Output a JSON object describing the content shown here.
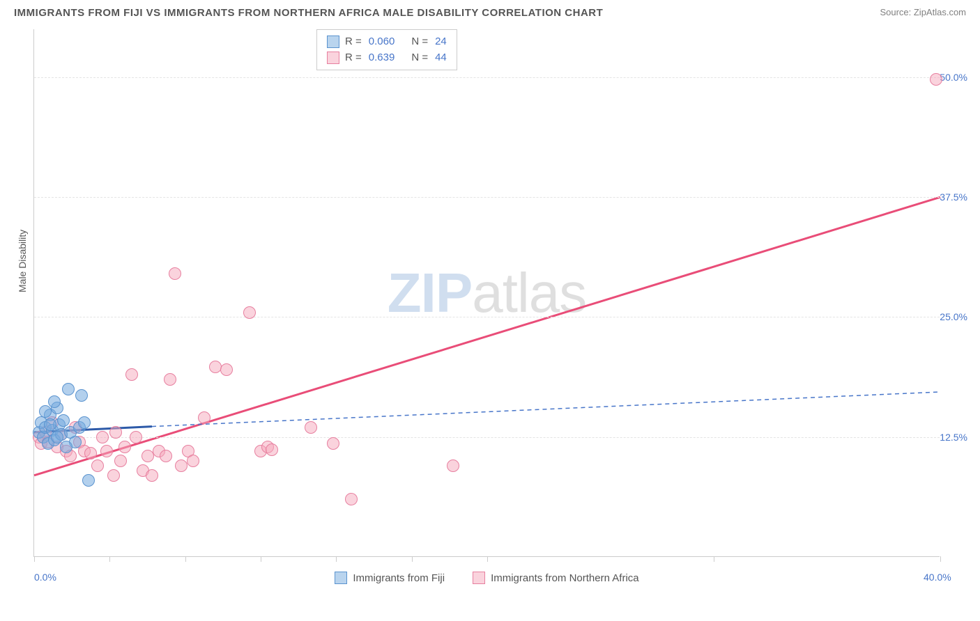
{
  "header": {
    "title": "IMMIGRANTS FROM FIJI VS IMMIGRANTS FROM NORTHERN AFRICA MALE DISABILITY CORRELATION CHART",
    "source": "Source: ZipAtlas.com"
  },
  "chart": {
    "y_title": "Male Disability",
    "watermark_zip": "ZIP",
    "watermark_atlas": "atlas",
    "xlim": [
      0,
      40
    ],
    "ylim": [
      0,
      55
    ],
    "x_ticks_pct": [
      0,
      3.33,
      6.67,
      10,
      13.33,
      16.67,
      20,
      30,
      40
    ],
    "x_labels": [
      {
        "x": 0,
        "text": "0.0%"
      },
      {
        "x": 40,
        "text": "40.0%"
      }
    ],
    "y_gridlines": [
      12.5,
      25.0,
      37.5,
      50.0
    ],
    "y_labels": [
      {
        "y": 12.5,
        "text": "12.5%"
      },
      {
        "y": 25.0,
        "text": "25.0%"
      },
      {
        "y": 37.5,
        "text": "37.5%"
      },
      {
        "y": 50.0,
        "text": "50.0%"
      }
    ],
    "series": {
      "blue": {
        "label": "Immigrants from Fiji",
        "color_fill": "rgba(116,169,222,0.55)",
        "color_stroke": "#5a93cf",
        "R": "0.060",
        "N": "24",
        "trend_solid": {
          "x1": 0,
          "y1": 13.0,
          "x2": 5.2,
          "y2": 13.6
        },
        "trend_dash": {
          "x1": 5.2,
          "y1": 13.6,
          "x2": 40,
          "y2": 17.2
        },
        "points": [
          {
            "x": 0.2,
            "y": 13.0
          },
          {
            "x": 0.3,
            "y": 14.0
          },
          {
            "x": 0.4,
            "y": 12.5
          },
          {
            "x": 0.5,
            "y": 13.5
          },
          {
            "x": 0.6,
            "y": 11.8
          },
          {
            "x": 0.7,
            "y": 14.8
          },
          {
            "x": 0.8,
            "y": 13.2
          },
          {
            "x": 0.9,
            "y": 12.2
          },
          {
            "x": 1.0,
            "y": 15.5
          },
          {
            "x": 1.1,
            "y": 13.8
          },
          {
            "x": 1.2,
            "y": 12.8
          },
          {
            "x": 1.3,
            "y": 14.2
          },
          {
            "x": 1.5,
            "y": 17.5
          },
          {
            "x": 1.6,
            "y": 13.0
          },
          {
            "x": 1.8,
            "y": 12.0
          },
          {
            "x": 2.0,
            "y": 13.5
          },
          {
            "x": 2.2,
            "y": 14.0
          },
          {
            "x": 2.4,
            "y": 8.0
          },
          {
            "x": 2.1,
            "y": 16.8
          },
          {
            "x": 0.5,
            "y": 15.2
          },
          {
            "x": 0.9,
            "y": 16.2
          },
          {
            "x": 1.4,
            "y": 11.5
          },
          {
            "x": 0.7,
            "y": 13.8
          },
          {
            "x": 1.0,
            "y": 12.5
          }
        ]
      },
      "pink": {
        "label": "Immigrants from Northern Africa",
        "color_fill": "rgba(245,168,188,0.5)",
        "color_stroke": "#e77f9f",
        "R": "0.639",
        "N": "44",
        "trend_solid": {
          "x1": 0,
          "y1": 8.5,
          "x2": 40,
          "y2": 37.5
        },
        "points": [
          {
            "x": 0.2,
            "y": 12.5
          },
          {
            "x": 0.3,
            "y": 11.8
          },
          {
            "x": 0.5,
            "y": 13.0
          },
          {
            "x": 0.6,
            "y": 12.0
          },
          {
            "x": 0.8,
            "y": 14.0
          },
          {
            "x": 1.0,
            "y": 11.5
          },
          {
            "x": 1.2,
            "y": 12.8
          },
          {
            "x": 1.4,
            "y": 11.0
          },
          {
            "x": 1.6,
            "y": 10.5
          },
          {
            "x": 1.8,
            "y": 13.5
          },
          {
            "x": 2.0,
            "y": 12.0
          },
          {
            "x": 2.2,
            "y": 11.0
          },
          {
            "x": 2.5,
            "y": 10.8
          },
          {
            "x": 2.8,
            "y": 9.5
          },
          {
            "x": 3.0,
            "y": 12.5
          },
          {
            "x": 3.2,
            "y": 11.0
          },
          {
            "x": 3.5,
            "y": 8.5
          },
          {
            "x": 3.8,
            "y": 10.0
          },
          {
            "x": 4.0,
            "y": 11.5
          },
          {
            "x": 4.3,
            "y": 19.0
          },
          {
            "x": 4.8,
            "y": 9.0
          },
          {
            "x": 5.0,
            "y": 10.5
          },
          {
            "x": 5.2,
            "y": 8.5
          },
          {
            "x": 5.5,
            "y": 11.0
          },
          {
            "x": 5.8,
            "y": 10.5
          },
          {
            "x": 6.0,
            "y": 18.5
          },
          {
            "x": 6.2,
            "y": 29.5
          },
          {
            "x": 6.5,
            "y": 9.5
          },
          {
            "x": 6.8,
            "y": 11.0
          },
          {
            "x": 7.0,
            "y": 10.0
          },
          {
            "x": 7.5,
            "y": 14.5
          },
          {
            "x": 8.0,
            "y": 19.8
          },
          {
            "x": 8.5,
            "y": 19.5
          },
          {
            "x": 9.5,
            "y": 25.5
          },
          {
            "x": 10.0,
            "y": 11.0
          },
          {
            "x": 10.3,
            "y": 11.5
          },
          {
            "x": 10.5,
            "y": 11.2
          },
          {
            "x": 12.2,
            "y": 13.5
          },
          {
            "x": 13.2,
            "y": 11.8
          },
          {
            "x": 14.0,
            "y": 6.0
          },
          {
            "x": 18.5,
            "y": 9.5
          },
          {
            "x": 39.8,
            "y": 49.8
          },
          {
            "x": 4.5,
            "y": 12.5
          },
          {
            "x": 3.6,
            "y": 13.0
          }
        ]
      }
    },
    "marker_radius": 9
  }
}
